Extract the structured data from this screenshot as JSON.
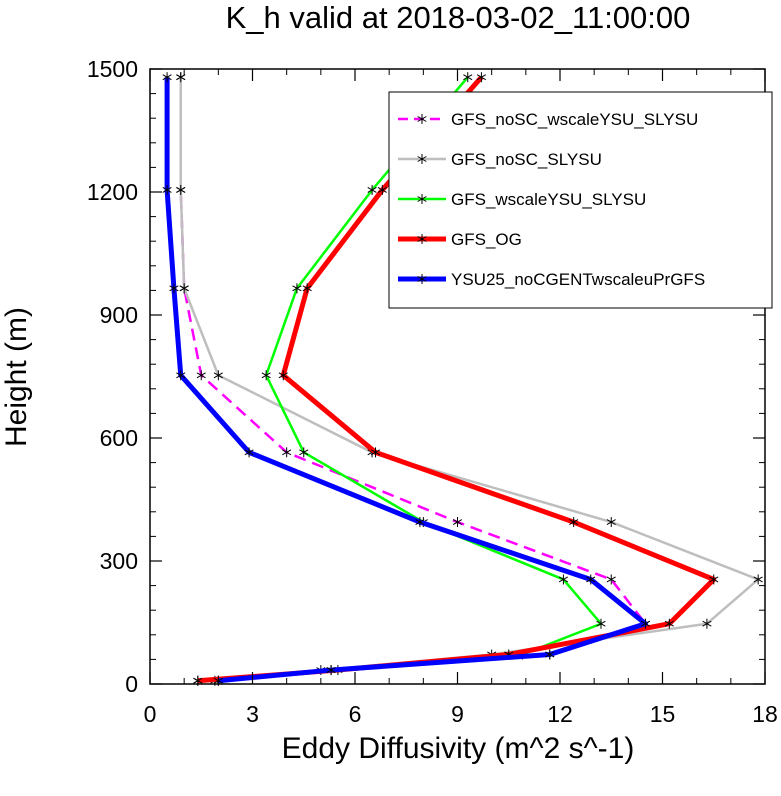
{
  "chart_data": {
    "type": "line",
    "title": "K_h valid at 2018-03-02_11:00:00",
    "xlabel": "Eddy Diffusivity (m^2 s^-1)",
    "ylabel": "Height (m)",
    "xlim": [
      0,
      18
    ],
    "ylim": [
      0,
      1500
    ],
    "xticks": [
      0,
      3,
      6,
      9,
      12,
      15,
      18
    ],
    "yticks": [
      0,
      300,
      600,
      900,
      1200,
      1500
    ],
    "legend_position": "top-right",
    "series": [
      {
        "name": "GFS_noSC_wscaleYSU_SLYSU",
        "color": "#ff00ff",
        "dash": "dashed",
        "x": [
          2.0,
          5.3,
          11.7,
          14.5,
          13.5,
          9.0,
          4.0,
          1.5,
          1.0,
          0.9,
          0.9
        ],
        "y": [
          8,
          34,
          72,
          147,
          255,
          395,
          565,
          753,
          965,
          1205,
          1480
        ]
      },
      {
        "name": "GFS_noSC_SLYSU",
        "color": "#bebebe",
        "dash": "solid",
        "x": [
          1.4,
          5.0,
          10.0,
          16.3,
          17.8,
          13.5,
          6.5,
          2.0,
          1.0,
          0.9,
          0.9
        ],
        "y": [
          8,
          34,
          72,
          147,
          255,
          395,
          565,
          753,
          965,
          1205,
          1480
        ]
      },
      {
        "name": "GFS_wscaleYSU_SLYSU",
        "color": "#00ff00",
        "dash": "solid",
        "x": [
          1.9,
          5.3,
          10.9,
          13.2,
          12.1,
          8.0,
          4.5,
          3.4,
          4.3,
          6.5,
          9.3
        ],
        "y": [
          8,
          34,
          72,
          147,
          255,
          395,
          565,
          753,
          965,
          1205,
          1480
        ]
      },
      {
        "name": "GFS_OG",
        "color": "#ff0000",
        "dash": "solid",
        "x": [
          1.4,
          5.5,
          10.5,
          15.2,
          16.5,
          12.4,
          6.6,
          3.9,
          4.6,
          6.8,
          9.7
        ],
        "y": [
          8,
          34,
          72,
          147,
          255,
          395,
          565,
          753,
          965,
          1205,
          1480
        ]
      },
      {
        "name": "YSU25_noCGENTwscaleuPrGFS",
        "color": "#0000ff",
        "dash": "solid",
        "x": [
          2.0,
          5.3,
          11.7,
          14.5,
          12.9,
          7.9,
          2.9,
          0.9,
          0.7,
          0.5,
          0.5
        ],
        "y": [
          8,
          34,
          72,
          147,
          255,
          395,
          565,
          753,
          965,
          1205,
          1480
        ]
      }
    ]
  }
}
